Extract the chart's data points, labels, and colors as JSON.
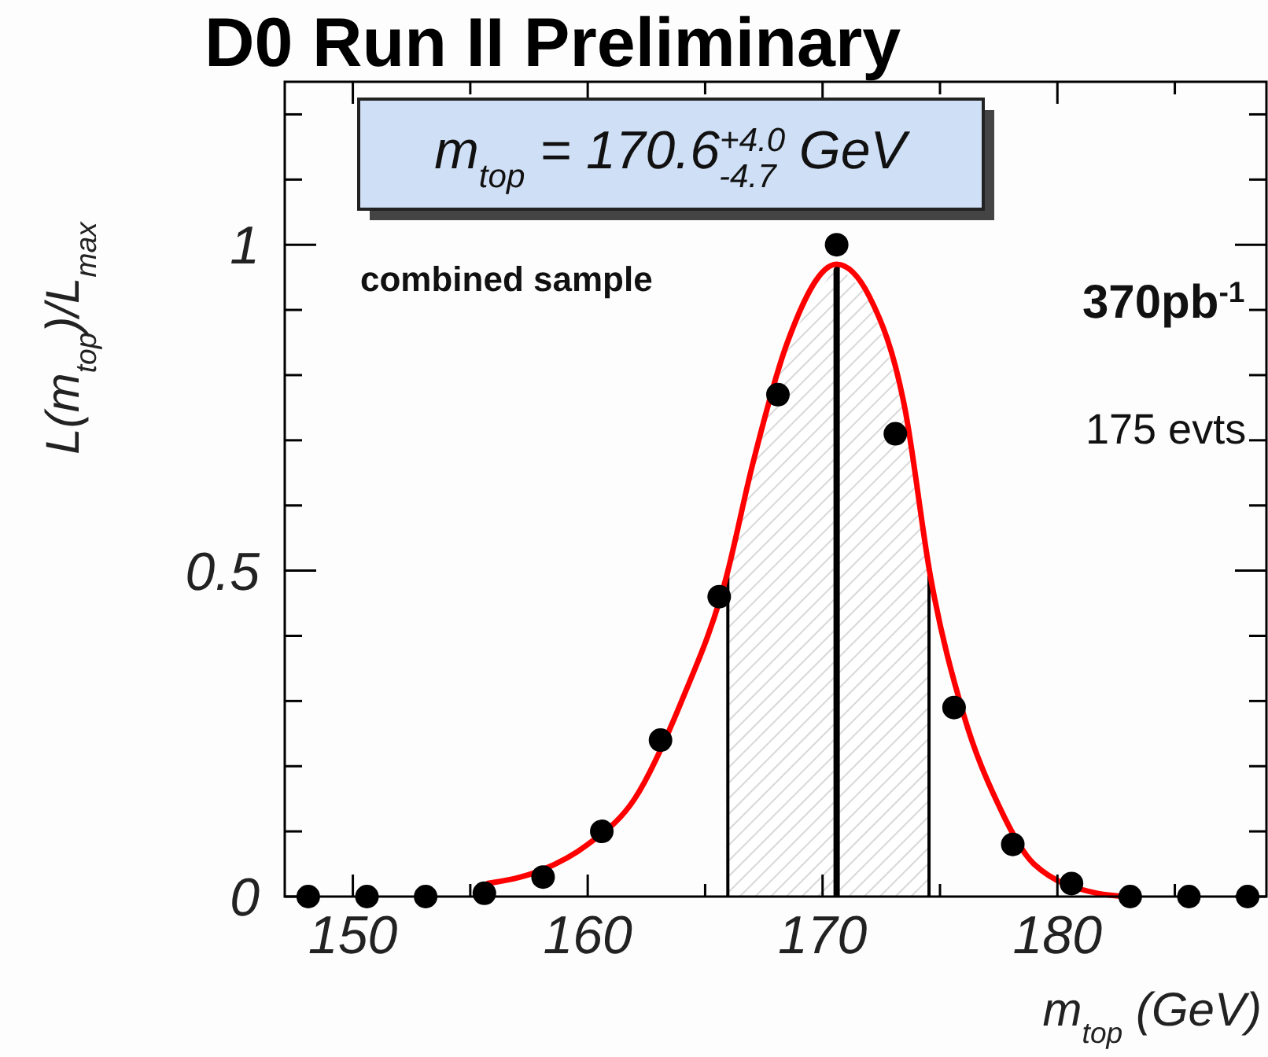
{
  "chart_data": {
    "type": "scatter",
    "title": "D0 Run II Preliminary",
    "xlabel": "m$_{top}$ (GeV)",
    "ylabel": "L(m$_{top}$)/L$_{max}$",
    "annotations": [
      "m$_{top}$ = 170.6$^{+4.0}$$_{-4.7}$ GeV",
      "combined sample",
      "370pb$^{-1}$",
      "175 evts"
    ],
    "xlim": [
      147.1,
      188.9
    ],
    "ylim": [
      0,
      1.25
    ],
    "xticks": [
      150,
      {
        "value": 155,
        "label": null
      },
      160,
      {
        "value": 165,
        "label": null
      },
      170,
      {
        "value": 175,
        "label": null
      },
      180,
      {
        "value": 185,
        "label": null
      }
    ],
    "yticks": [
      0,
      {
        "value": 0.1,
        "label": null
      },
      {
        "value": 0.2,
        "label": null
      },
      {
        "value": 0.3,
        "label": null
      },
      {
        "value": 0.4,
        "label": null
      },
      0.5,
      {
        "value": 0.6,
        "label": null
      },
      {
        "value": 0.7,
        "label": null
      },
      {
        "value": 0.8,
        "label": null
      },
      {
        "value": 0.9,
        "label": null
      },
      1,
      {
        "value": 1.1,
        "label": null
      },
      {
        "value": 1.2,
        "label": null
      }
    ],
    "grid": false,
    "ref_lines": [
      {
        "axis": "x",
        "value": 165.9,
        "color": "#000000"
      },
      {
        "axis": "x",
        "value": 170.6,
        "color": "#000000"
      },
      {
        "axis": "x",
        "value": 174.6,
        "color": "#000000"
      }
    ],
    "series": [
      {
        "type": "area",
        "color": "#d8d8d8",
        "x": [
          165.9,
          167,
          168.5,
          170.6,
          172,
          173.5,
          174.6
        ],
        "values": [
          0.49,
          0.66,
          0.85,
          0.97,
          0.92,
          0.75,
          0.49
        ]
      },
      {
        "type": "line",
        "color": "#ff0000",
        "x": [
          155.7,
          158,
          160,
          162,
          164,
          165.9,
          167,
          168.5,
          170.6,
          172,
          173.5,
          174.6,
          176,
          177.5,
          179,
          181.7,
          183
        ],
        "values": [
          0.02,
          0.04,
          0.08,
          0.15,
          0.3,
          0.49,
          0.66,
          0.85,
          0.97,
          0.92,
          0.75,
          0.49,
          0.28,
          0.14,
          0.05,
          0.005,
          0
        ]
      },
      {
        "marker": "circle",
        "color": "#000000",
        "x": [
          148.1,
          150.6,
          153.1,
          155.6,
          158.1,
          160.6,
          163.1,
          165.6,
          168.1,
          170.6,
          173.1,
          175.6,
          178.1,
          180.6,
          183.1,
          185.6,
          188.1
        ],
        "values": [
          0,
          0,
          0,
          0.005,
          0.03,
          0.1,
          0.24,
          0.46,
          0.77,
          1,
          0.71,
          0.29,
          0.08,
          0.02,
          0,
          0,
          0
        ]
      }
    ]
  }
}
